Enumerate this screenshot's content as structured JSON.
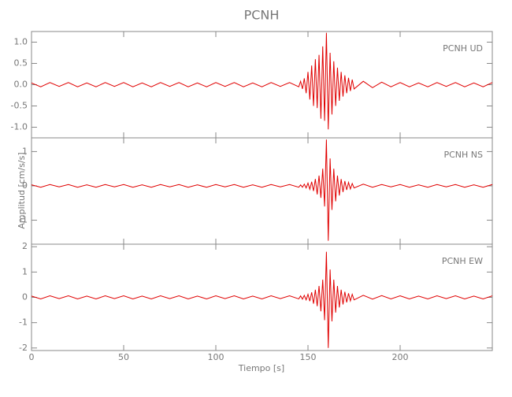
{
  "chart_data": [
    {
      "type": "line",
      "title": "PCNH",
      "x": [
        0,
        5,
        10,
        15,
        20,
        25,
        30,
        35,
        40,
        45,
        50,
        55,
        60,
        65,
        70,
        75,
        80,
        85,
        90,
        95,
        100,
        105,
        110,
        115,
        120,
        125,
        130,
        135,
        140,
        145,
        146,
        147,
        148,
        149,
        150,
        151,
        152,
        153,
        154,
        155,
        156,
        157,
        158,
        159,
        160,
        161,
        162,
        163,
        164,
        165,
        166,
        167,
        168,
        169,
        170,
        171,
        172,
        173,
        174,
        175,
        180,
        185,
        190,
        195,
        200,
        205,
        210,
        215,
        220,
        225,
        230,
        235,
        240,
        245,
        250
      ],
      "series": [
        {
          "name": "PCNH   UD",
          "color": "#e00000",
          "values": [
            0.04,
            -0.05,
            0.05,
            -0.04,
            0.05,
            -0.05,
            0.04,
            -0.05,
            0.05,
            -0.04,
            0.05,
            -0.05,
            0.04,
            -0.05,
            0.05,
            -0.04,
            0.05,
            -0.05,
            0.04,
            -0.05,
            0.05,
            -0.04,
            0.05,
            -0.05,
            0.04,
            -0.05,
            0.05,
            -0.04,
            0.05,
            -0.05,
            0.08,
            -0.1,
            0.15,
            -0.2,
            0.3,
            -0.35,
            0.45,
            -0.5,
            0.6,
            -0.55,
            0.7,
            -0.8,
            0.9,
            -0.85,
            1.22,
            -1.05,
            0.75,
            -0.7,
            0.55,
            -0.5,
            0.4,
            -0.38,
            0.3,
            -0.28,
            0.22,
            -0.2,
            0.16,
            -0.15,
            0.12,
            -0.1,
            0.08,
            -0.07,
            0.06,
            -0.05,
            0.05,
            -0.05,
            0.04,
            -0.05,
            0.05,
            -0.04,
            0.05,
            -0.05,
            0.04,
            -0.05,
            0.05
          ]
        }
      ],
      "ylim": [
        -1.25,
        1.25
      ],
      "yticks": [
        {
          "value": -1,
          "label": "-1.0"
        },
        -0.5,
        {
          "value": 0,
          "label": "0.0"
        },
        0.5,
        {
          "value": 1,
          "label": "1.0"
        }
      ]
    },
    {
      "type": "line",
      "ylabel": "Amplitud [cm/s/s]",
      "x": [
        0,
        5,
        10,
        15,
        20,
        25,
        30,
        35,
        40,
        45,
        50,
        55,
        60,
        65,
        70,
        75,
        80,
        85,
        90,
        95,
        100,
        105,
        110,
        115,
        120,
        125,
        130,
        135,
        140,
        145,
        146,
        147,
        148,
        149,
        150,
        151,
        152,
        153,
        154,
        155,
        156,
        157,
        158,
        159,
        160,
        161,
        162,
        163,
        164,
        165,
        166,
        167,
        168,
        169,
        170,
        171,
        172,
        173,
        174,
        175,
        180,
        185,
        190,
        195,
        200,
        205,
        210,
        215,
        220,
        225,
        230,
        235,
        240,
        245,
        250
      ],
      "series": [
        {
          "name": "PCNH   NS",
          "color": "#e00000",
          "values": [
            0.03,
            -0.04,
            0.04,
            -0.03,
            0.04,
            -0.04,
            0.03,
            -0.04,
            0.04,
            -0.03,
            0.04,
            -0.04,
            0.03,
            -0.04,
            0.04,
            -0.03,
            0.04,
            -0.04,
            0.03,
            -0.04,
            0.04,
            -0.03,
            0.04,
            -0.04,
            0.03,
            -0.04,
            0.04,
            -0.03,
            0.04,
            -0.04,
            0.03,
            -0.04,
            0.05,
            -0.06,
            0.08,
            -0.1,
            0.12,
            -0.15,
            0.2,
            -0.25,
            0.3,
            -0.35,
            0.5,
            -0.6,
            1.35,
            -1.6,
            0.8,
            -0.7,
            0.5,
            -0.45,
            0.3,
            -0.28,
            0.2,
            -0.18,
            0.14,
            -0.12,
            0.1,
            -0.09,
            0.07,
            -0.06,
            0.05,
            -0.04,
            0.04,
            -0.03,
            0.04,
            -0.04,
            0.03,
            -0.04,
            0.04,
            -0.03,
            0.04,
            -0.04,
            0.03,
            -0.04,
            0.04
          ]
        }
      ],
      "ylim": [
        -1.7,
        1.4
      ],
      "yticks": [
        -1,
        0,
        1
      ]
    },
    {
      "type": "line",
      "xlabel": "Tiempo [s]",
      "x": [
        0,
        5,
        10,
        15,
        20,
        25,
        30,
        35,
        40,
        45,
        50,
        55,
        60,
        65,
        70,
        75,
        80,
        85,
        90,
        95,
        100,
        105,
        110,
        115,
        120,
        125,
        130,
        135,
        140,
        145,
        146,
        147,
        148,
        149,
        150,
        151,
        152,
        153,
        154,
        155,
        156,
        157,
        158,
        159,
        160,
        161,
        162,
        163,
        164,
        165,
        166,
        167,
        168,
        169,
        170,
        171,
        172,
        173,
        174,
        175,
        180,
        185,
        190,
        195,
        200,
        205,
        210,
        215,
        220,
        225,
        230,
        235,
        240,
        245,
        250
      ],
      "series": [
        {
          "name": "PCNH   EW",
          "color": "#e00000",
          "values": [
            0.05,
            -0.06,
            0.06,
            -0.05,
            0.06,
            -0.06,
            0.05,
            -0.06,
            0.06,
            -0.05,
            0.06,
            -0.06,
            0.05,
            -0.06,
            0.06,
            -0.05,
            0.06,
            -0.06,
            0.05,
            -0.06,
            0.06,
            -0.05,
            0.06,
            -0.06,
            0.05,
            -0.06,
            0.06,
            -0.05,
            0.06,
            -0.06,
            0.06,
            -0.07,
            0.08,
            -0.1,
            0.12,
            -0.15,
            0.2,
            -0.25,
            0.3,
            -0.35,
            0.45,
            -0.55,
            0.7,
            -0.9,
            1.8,
            -2.0,
            1.1,
            -0.95,
            0.7,
            -0.6,
            0.45,
            -0.4,
            0.3,
            -0.28,
            0.22,
            -0.2,
            0.16,
            -0.14,
            0.12,
            -0.1,
            0.08,
            -0.07,
            0.07,
            -0.06,
            0.06,
            -0.06,
            0.05,
            -0.06,
            0.06,
            -0.05,
            0.06,
            -0.06,
            0.05,
            -0.06,
            0.06
          ]
        }
      ],
      "ylim": [
        -2.1,
        2.1
      ],
      "yticks": [
        -2,
        -1,
        0,
        1,
        2
      ],
      "xlim": [
        0,
        250
      ],
      "xticks": [
        0,
        50,
        100,
        150,
        200
      ]
    }
  ]
}
